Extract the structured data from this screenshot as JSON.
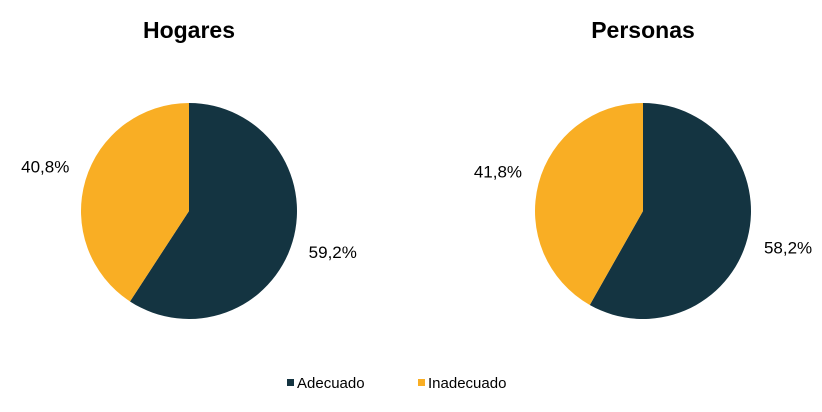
{
  "chart_data": [
    {
      "type": "pie",
      "title": "Hogares",
      "values": [
        59.2,
        40.8
      ],
      "value_labels": [
        "59,2%",
        "40,8%"
      ]
    },
    {
      "type": "pie",
      "title": "Personas",
      "values": [
        58.2,
        41.8
      ],
      "value_labels": [
        "58,2%",
        "41,8%"
      ]
    }
  ],
  "legend": {
    "labels": [
      "Adecuado",
      "Inadecuado"
    ],
    "colors": [
      "#143441",
      "#f9ae24"
    ]
  }
}
